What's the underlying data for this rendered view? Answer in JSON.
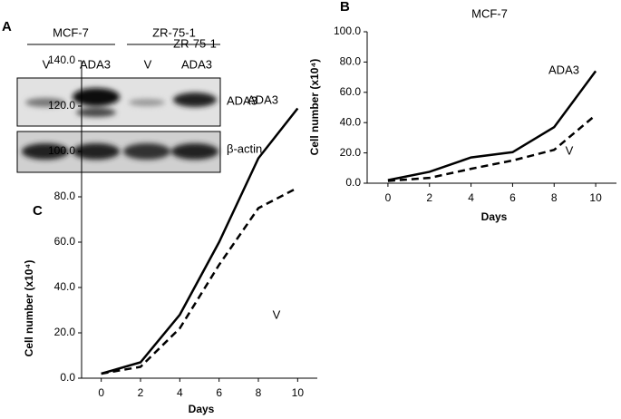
{
  "blot": {
    "panel": "A",
    "groups": [
      "MCF-7",
      "ZR-75-1"
    ],
    "lanes": [
      "V",
      "ADA3",
      "V",
      "ADA3"
    ],
    "rows": [
      "ADA3",
      "β-actin"
    ]
  },
  "chart_data": [
    {
      "type": "line",
      "panel": "B",
      "title": "MCF-7",
      "xlabel": "Days",
      "ylabel": "Cell number (x10⁴)",
      "x": [
        0,
        2,
        4,
        6,
        8,
        10
      ],
      "xlim": [
        -1,
        11
      ],
      "xticks": [
        0,
        2,
        4,
        6,
        8,
        10
      ],
      "ylim": [
        0,
        100
      ],
      "yticks": [
        {
          "value": 0,
          "label": "0.0"
        },
        {
          "value": 20,
          "label": "20.0"
        },
        {
          "value": 40,
          "label": "40.0"
        },
        {
          "value": 60,
          "label": "60.0"
        },
        {
          "value": 80,
          "label": "80.0"
        },
        {
          "value": 100,
          "label": "100.0"
        }
      ],
      "series": [
        {
          "name": "ADA3",
          "color": "#000000",
          "dashed": false,
          "values": [
            2,
            7.5,
            17,
            20.5,
            37,
            74
          ]
        },
        {
          "name": "V",
          "color": "#000000",
          "dashed": true,
          "values": [
            1.5,
            3.5,
            9.5,
            15,
            22,
            45
          ]
        }
      ]
    },
    {
      "type": "line",
      "panel": "C",
      "title": "ZR-75-1",
      "xlabel": "Days",
      "ylabel": "Cell number (x10⁴)",
      "x": [
        0,
        2,
        4,
        6,
        8,
        10
      ],
      "xlim": [
        -1,
        11
      ],
      "xticks": [
        0,
        2,
        4,
        6,
        8,
        10
      ],
      "ylim": [
        0,
        140
      ],
      "yticks": [
        {
          "value": 0,
          "label": "0.0"
        },
        {
          "value": 20,
          "label": "20.0"
        },
        {
          "value": 40,
          "label": "40.0"
        },
        {
          "value": 60,
          "label": "60.0"
        },
        {
          "value": 80,
          "label": "80.0"
        },
        {
          "value": 100,
          "label": "100.0"
        },
        {
          "value": 120,
          "label": "120.0"
        },
        {
          "value": 140,
          "label": "140.0"
        }
      ],
      "series": [
        {
          "name": "ADA3",
          "color": "#000000",
          "dashed": false,
          "values": [
            2,
            7,
            28,
            60,
            97,
            119
          ]
        },
        {
          "name": "V",
          "color": "#000000",
          "dashed": true,
          "values": [
            2,
            5,
            22,
            50,
            75,
            84
          ]
        }
      ]
    }
  ]
}
